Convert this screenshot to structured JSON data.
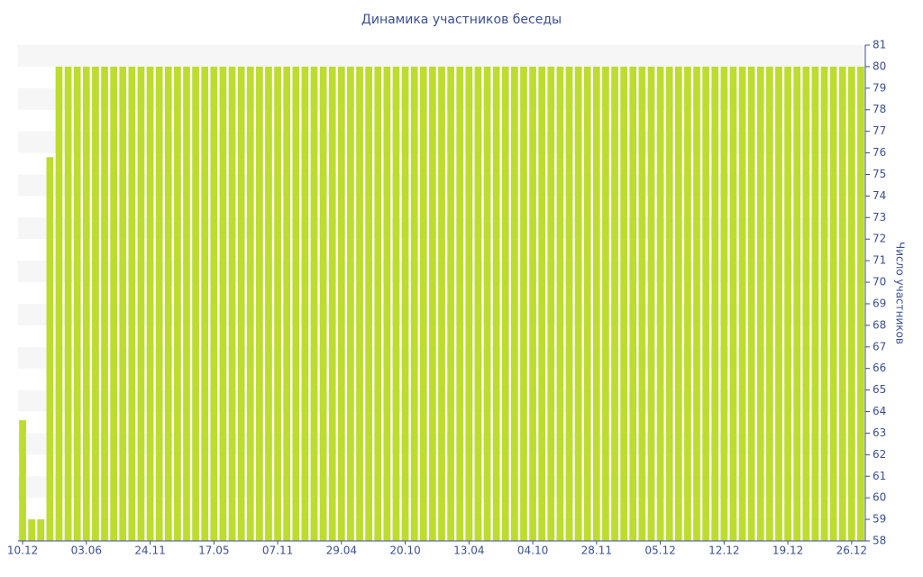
{
  "chart_data": {
    "type": "bar",
    "title": "Динамика участников беседы",
    "y_axis_label": "Число участников",
    "categories": [
      "10.12",
      null,
      null,
      null,
      null,
      null,
      null,
      "03.06",
      null,
      null,
      null,
      null,
      null,
      null,
      "24.11",
      null,
      null,
      null,
      null,
      null,
      null,
      "17.05",
      null,
      null,
      null,
      null,
      null,
      null,
      "07.11",
      null,
      null,
      null,
      null,
      null,
      null,
      "29.04",
      null,
      null,
      null,
      null,
      null,
      null,
      "20.10",
      null,
      null,
      null,
      null,
      null,
      null,
      "13.04",
      null,
      null,
      null,
      null,
      null,
      null,
      "04.10",
      null,
      null,
      null,
      null,
      null,
      null,
      "28.11",
      null,
      null,
      null,
      null,
      null,
      null,
      "05.12",
      null,
      null,
      null,
      null,
      null,
      null,
      "12.12",
      null,
      null,
      null,
      null,
      null,
      null,
      "19.12",
      null,
      null,
      null,
      null,
      null,
      null,
      "26.12",
      null
    ],
    "values": [
      63.6,
      59,
      59,
      75.8,
      80,
      80,
      80,
      80,
      80,
      80,
      80,
      80,
      80,
      80,
      80,
      80,
      80,
      80,
      80,
      80,
      80,
      80,
      80,
      80,
      80,
      80,
      80,
      80,
      80,
      80,
      80,
      80,
      80,
      80,
      80,
      80,
      80,
      80,
      80,
      80,
      80,
      80,
      80,
      80,
      80,
      80,
      80,
      80,
      80,
      80,
      80,
      80,
      80,
      80,
      80,
      80,
      80,
      80,
      80,
      80,
      80,
      80,
      80,
      80,
      80,
      80,
      80,
      80,
      80,
      80,
      80,
      80,
      80,
      80,
      80,
      80,
      80,
      80,
      80,
      80,
      80,
      80,
      80,
      80,
      80,
      80,
      80,
      80,
      80,
      80,
      80,
      80,
      80
    ],
    "color": "#bddc2e",
    "ylim": [
      58,
      81
    ],
    "yticks": [
      58,
      59,
      60,
      61,
      62,
      63,
      64,
      65,
      66,
      67,
      68,
      69,
      70,
      71,
      72,
      73,
      74,
      75,
      76,
      77,
      78,
      79,
      80,
      81
    ],
    "grid": true
  }
}
